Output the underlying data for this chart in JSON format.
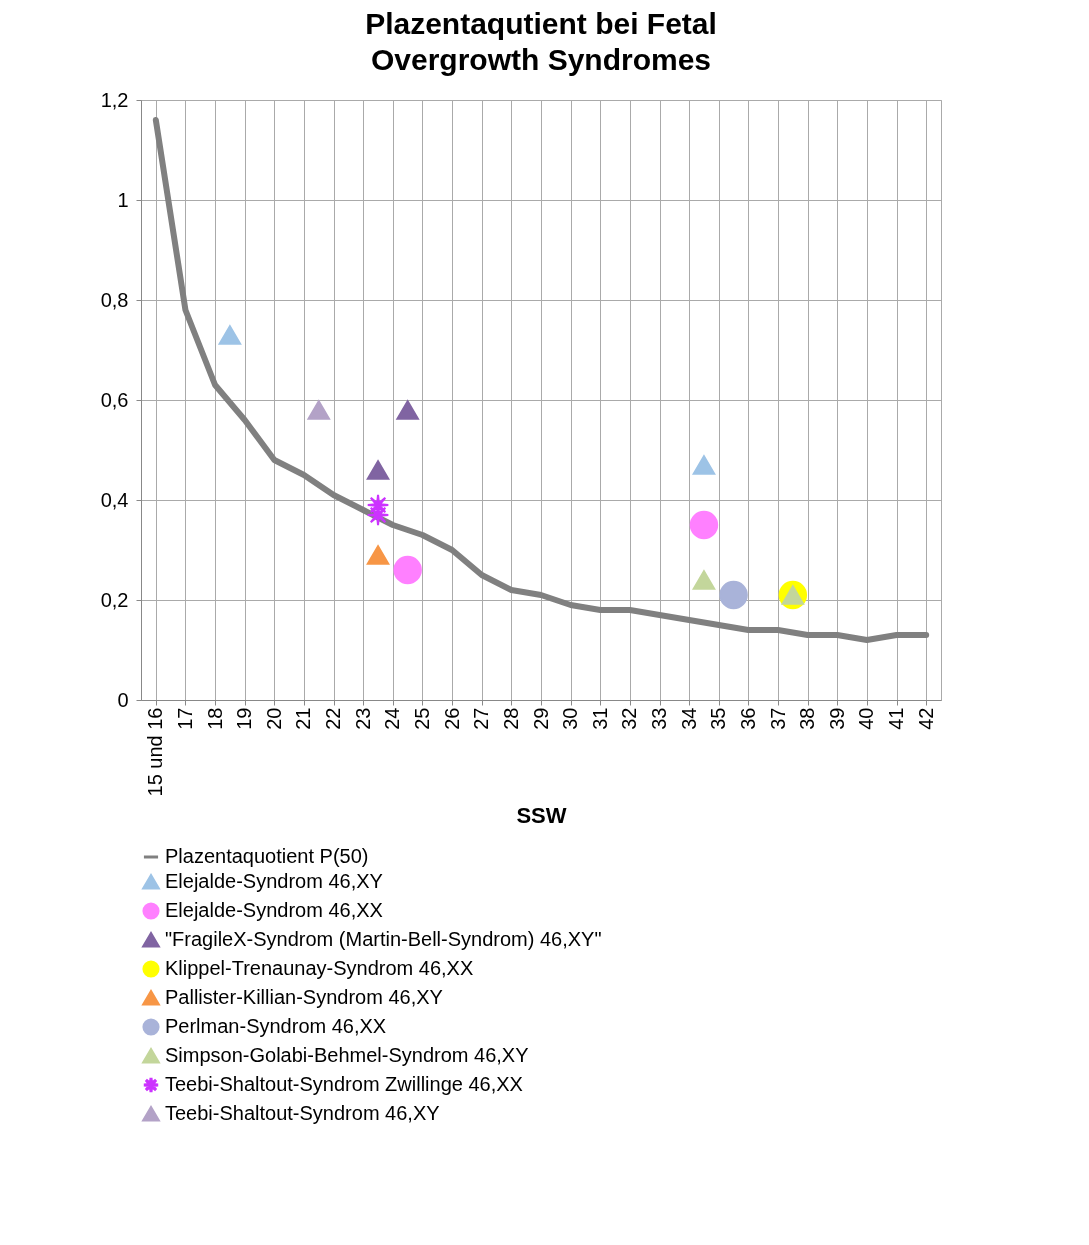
{
  "chart_data": {
    "type": "line",
    "title": "Plazentaqutient bei Fetal Overgrowth Syndromes",
    "xlabel": "SSW",
    "xlim": [
      15.5,
      42.5
    ],
    "xticks": [
      {
        "value": 16,
        "label": "15 und 16"
      },
      17,
      18,
      19,
      20,
      21,
      22,
      23,
      24,
      25,
      26,
      27,
      28,
      29,
      30,
      31,
      32,
      33,
      34,
      35,
      36,
      37,
      38,
      39,
      40,
      41,
      42
    ],
    "ylim": [
      0,
      1.2
    ],
    "yticks": [
      0,
      {
        "value": 0.2,
        "label": "0,2"
      },
      {
        "value": 0.4,
        "label": "0,4"
      },
      {
        "value": 0.6,
        "label": "0,6"
      },
      {
        "value": 0.8,
        "label": "0,8"
      },
      1,
      {
        "value": 1.2,
        "label": "1,2"
      }
    ],
    "grid": true,
    "legend": "bottom",
    "series": [
      {
        "name": "Plazentaquotient P(50)",
        "type": "line",
        "color": "#808080",
        "marker": "none",
        "line_style": "solid",
        "x": [
          16,
          17,
          18,
          19,
          20,
          21,
          22,
          23,
          24,
          25,
          26,
          27,
          28,
          29,
          30,
          31,
          32,
          33,
          34,
          35,
          36,
          37,
          38,
          39,
          40,
          41,
          42
        ],
        "values": [
          1.16,
          0.78,
          0.63,
          0.56,
          0.48,
          0.45,
          0.41,
          0.38,
          0.35,
          0.33,
          0.3,
          0.25,
          0.22,
          0.21,
          0.19,
          0.18,
          0.18,
          0.17,
          0.16,
          0.15,
          0.14,
          0.14,
          0.13,
          0.13,
          0.12,
          0.13,
          0.13
        ]
      },
      {
        "name": "Elejalde-Syndrom 46,XY",
        "type": "scatter",
        "color": "#9dc3e6",
        "marker": "triangle",
        "x": [
          18.5,
          34.5
        ],
        "values": [
          0.73,
          0.47
        ]
      },
      {
        "name": "Elejalde-Syndrom 46,XX",
        "type": "scatter",
        "color": "#ff80ff",
        "marker": "circle",
        "x": [
          24.5,
          34.5
        ],
        "values": [
          0.26,
          0.35
        ]
      },
      {
        "name": "\"FragileX-Syndrom (Martin-Bell-Syndrom) 46,XY\"",
        "type": "scatter",
        "color": "#8064a2",
        "marker": "triangle",
        "x": [
          23.5,
          24.5
        ],
        "values": [
          0.46,
          0.58
        ]
      },
      {
        "name": "Klippel-Trenaunay-Syndrom 46,XX",
        "type": "scatter",
        "color": "#ffff00",
        "marker": "circle",
        "x": [
          37.5
        ],
        "values": [
          0.21
        ]
      },
      {
        "name": "Pallister-Killian-Syndrom 46,XY",
        "type": "scatter",
        "color": "#f79646",
        "marker": "triangle",
        "x": [
          23.5
        ],
        "values": [
          0.29
        ]
      },
      {
        "name": "Perlman-Syndrom 46,XX",
        "type": "scatter",
        "color": "#a9b3d9",
        "marker": "circle",
        "x": [
          35.5
        ],
        "values": [
          0.21
        ]
      },
      {
        "name": "Simpson-Golabi-Behmel-Syndrom 46,XY",
        "type": "scatter",
        "color": "#c3d69b",
        "marker": "triangle",
        "x": [
          34.5,
          37.5
        ],
        "values": [
          0.24,
          0.21
        ]
      },
      {
        "name": "Teebi-Shaltout-Syndrom Zwillinge 46,XX",
        "type": "scatter",
        "color": "#cc33ff",
        "marker": "cross",
        "x": [
          23.5,
          23.5
        ],
        "values": [
          0.39,
          0.37
        ]
      },
      {
        "name": "Teebi-Shaltout-Syndrom 46,XY",
        "type": "scatter",
        "color": "#b3a2c7",
        "marker": "triangle",
        "x": [
          21.5
        ],
        "values": [
          0.58
        ]
      }
    ]
  }
}
